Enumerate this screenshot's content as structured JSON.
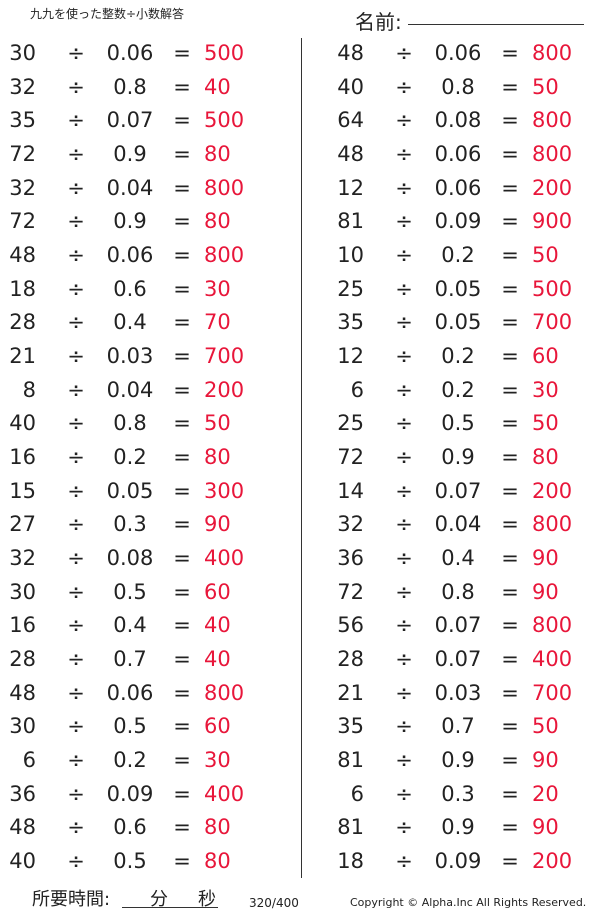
{
  "header": {
    "title": "九九を使った整数÷小数解答",
    "name_label": "名前:"
  },
  "footer": {
    "time_label": "所要時間:",
    "minutes": "分",
    "seconds": "秒",
    "page": "320/400",
    "copyright": "Copyright © Alpha.Inc All Rights Reserved."
  },
  "symbols": {
    "divide": "÷",
    "equals": "="
  },
  "colors": {
    "answer": "#e8163a"
  },
  "left": [
    [
      "30",
      "0.06",
      "500"
    ],
    [
      "32",
      "0.8",
      "40"
    ],
    [
      "35",
      "0.07",
      "500"
    ],
    [
      "72",
      "0.9",
      "80"
    ],
    [
      "32",
      "0.04",
      "800"
    ],
    [
      "72",
      "0.9",
      "80"
    ],
    [
      "48",
      "0.06",
      "800"
    ],
    [
      "18",
      "0.6",
      "30"
    ],
    [
      "28",
      "0.4",
      "70"
    ],
    [
      "21",
      "0.03",
      "700"
    ],
    [
      "8",
      "0.04",
      "200"
    ],
    [
      "40",
      "0.8",
      "50"
    ],
    [
      "16",
      "0.2",
      "80"
    ],
    [
      "15",
      "0.05",
      "300"
    ],
    [
      "27",
      "0.3",
      "90"
    ],
    [
      "32",
      "0.08",
      "400"
    ],
    [
      "30",
      "0.5",
      "60"
    ],
    [
      "16",
      "0.4",
      "40"
    ],
    [
      "28",
      "0.7",
      "40"
    ],
    [
      "48",
      "0.06",
      "800"
    ],
    [
      "30",
      "0.5",
      "60"
    ],
    [
      "6",
      "0.2",
      "30"
    ],
    [
      "36",
      "0.09",
      "400"
    ],
    [
      "48",
      "0.6",
      "80"
    ],
    [
      "40",
      "0.5",
      "80"
    ]
  ],
  "right": [
    [
      "48",
      "0.06",
      "800"
    ],
    [
      "40",
      "0.8",
      "50"
    ],
    [
      "64",
      "0.08",
      "800"
    ],
    [
      "48",
      "0.06",
      "800"
    ],
    [
      "12",
      "0.06",
      "200"
    ],
    [
      "81",
      "0.09",
      "900"
    ],
    [
      "10",
      "0.2",
      "50"
    ],
    [
      "25",
      "0.05",
      "500"
    ],
    [
      "35",
      "0.05",
      "700"
    ],
    [
      "12",
      "0.2",
      "60"
    ],
    [
      "6",
      "0.2",
      "30"
    ],
    [
      "25",
      "0.5",
      "50"
    ],
    [
      "72",
      "0.9",
      "80"
    ],
    [
      "14",
      "0.07",
      "200"
    ],
    [
      "32",
      "0.04",
      "800"
    ],
    [
      "36",
      "0.4",
      "90"
    ],
    [
      "72",
      "0.8",
      "90"
    ],
    [
      "56",
      "0.07",
      "800"
    ],
    [
      "28",
      "0.07",
      "400"
    ],
    [
      "21",
      "0.03",
      "700"
    ],
    [
      "35",
      "0.7",
      "50"
    ],
    [
      "81",
      "0.9",
      "90"
    ],
    [
      "6",
      "0.3",
      "20"
    ],
    [
      "81",
      "0.9",
      "90"
    ],
    [
      "18",
      "0.09",
      "200"
    ]
  ]
}
